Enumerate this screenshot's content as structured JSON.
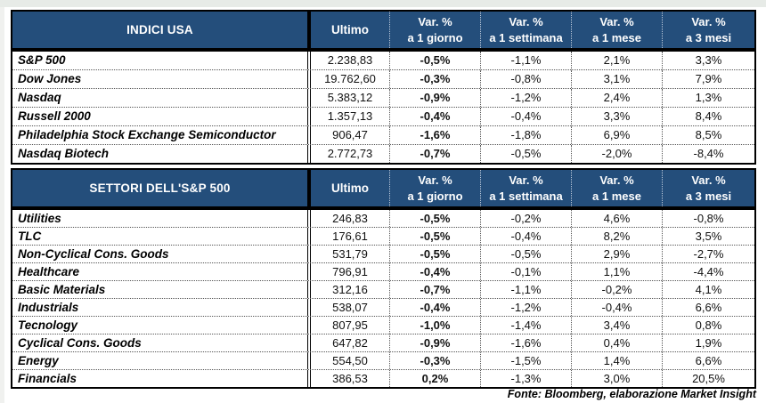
{
  "header": {
    "ultimo": "Ultimo",
    "var_cols": [
      {
        "line1": "Var. %",
        "line2": "a 1 giorno"
      },
      {
        "line1": "Var. %",
        "line2": "a 1 settimana"
      },
      {
        "line1": "Var. %",
        "line2": "a 1 mese"
      },
      {
        "line1": "Var. %",
        "line2": "a 3 mesi"
      }
    ]
  },
  "footer": {
    "source": "Fonte: Bloomberg, elaborazione Market Insight"
  },
  "colors": {
    "header_bg": "#244E7B",
    "header_text": "#FFFFFF",
    "border": "#000000"
  },
  "chart_data": [
    {
      "type": "table",
      "title": "INDICI USA",
      "columns": [
        "",
        "Ultimo",
        "Var. % a 1 giorno",
        "Var. % a 1 settimana",
        "Var. % a 1 mese",
        "Var. % a 3 mesi"
      ],
      "rows": [
        [
          "S&P 500",
          "2.238,83",
          "-0,5%",
          "-1,1%",
          "2,1%",
          "3,3%"
        ],
        [
          "Dow Jones",
          "19.762,60",
          "-0,3%",
          "-0,8%",
          "3,1%",
          "7,9%"
        ],
        [
          "Nasdaq",
          "5.383,12",
          "-0,9%",
          "-1,2%",
          "2,4%",
          "1,3%"
        ],
        [
          "Russell 2000",
          "1.357,13",
          "-0,4%",
          "-0,4%",
          "3,3%",
          "8,4%"
        ],
        [
          "Philadelphia Stock Exchange Semiconductor",
          "906,47",
          "-1,6%",
          "-1,8%",
          "6,9%",
          "8,5%"
        ],
        [
          "Nasdaq Biotech",
          "2.772,73",
          "-0,7%",
          "-0,5%",
          "-2,0%",
          "-8,4%"
        ]
      ]
    },
    {
      "type": "table",
      "title": "SETTORI DELL'S&P 500",
      "columns": [
        "",
        "Ultimo",
        "Var. % a 1 giorno",
        "Var. % a 1 settimana",
        "Var. % a 1 mese",
        "Var. % a 3 mesi"
      ],
      "rows": [
        [
          "Utilities",
          "246,83",
          "-0,5%",
          "-0,2%",
          "4,6%",
          "-0,8%"
        ],
        [
          "TLC",
          "176,61",
          "-0,5%",
          "-0,4%",
          "8,2%",
          "3,5%"
        ],
        [
          "Non-Cyclical Cons. Goods",
          "531,79",
          "-0,5%",
          "-0,5%",
          "2,9%",
          "-2,7%"
        ],
        [
          "Healthcare",
          "796,91",
          "-0,4%",
          "-0,1%",
          "1,1%",
          "-4,4%"
        ],
        [
          "Basic Materials",
          "312,16",
          "-0,7%",
          "-1,1%",
          "-0,2%",
          "4,1%"
        ],
        [
          "Industrials",
          "538,07",
          "-0,4%",
          "-1,2%",
          "-0,4%",
          "6,6%"
        ],
        [
          "Tecnology",
          "807,95",
          "-1,0%",
          "-1,4%",
          "3,4%",
          "0,8%"
        ],
        [
          "Cyclical Cons. Goods",
          "647,82",
          "-0,9%",
          "-1,6%",
          "0,4%",
          "1,9%"
        ],
        [
          "Energy",
          "554,50",
          "-0,3%",
          "-1,5%",
          "1,4%",
          "6,6%"
        ],
        [
          "Financials",
          "386,53",
          "0,2%",
          "-1,3%",
          "3,0%",
          "20,5%"
        ]
      ]
    }
  ]
}
